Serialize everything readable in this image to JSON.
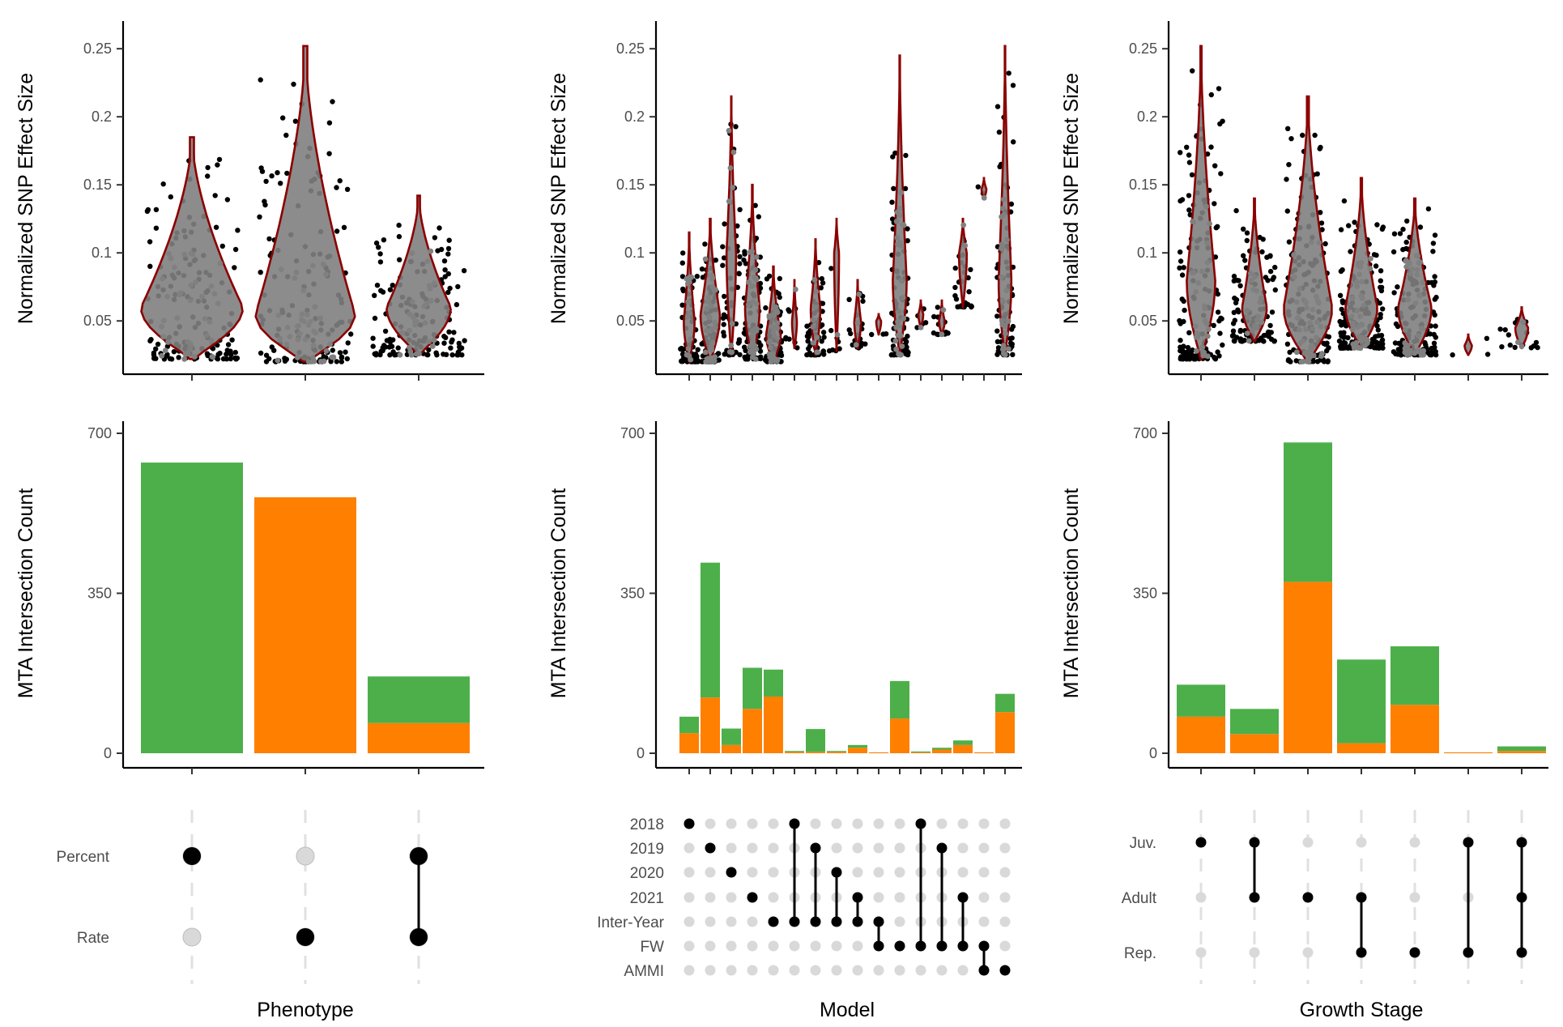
{
  "colors": {
    "green": "#4daf4a",
    "orange": "#ff7f00",
    "violin_outline": "#8b0000",
    "violin_fill": "#808080",
    "point": "#000000",
    "dot_inactive": "#d9d9d9",
    "dot_active": "#000000"
  },
  "chart_data": [
    {
      "type": "violin",
      "panel": "phenotype-effect",
      "ylabel": "Normalized SNP Effect Size",
      "yticks": [
        0.05,
        0.1,
        0.15,
        0.2,
        0.25
      ],
      "ylim": [
        0.018,
        0.262
      ],
      "groups": [
        {
          "min": 0.022,
          "max": 0.185,
          "median": 0.06,
          "n": 600
        },
        {
          "min": 0.02,
          "max": 0.252,
          "median": 0.055,
          "n": 560
        },
        {
          "min": 0.025,
          "max": 0.142,
          "median": 0.06,
          "n": 160
        }
      ]
    },
    {
      "type": "violin",
      "panel": "model-effect",
      "ylabel": "Normalized SNP Effect Size",
      "yticks": [
        0.05,
        0.1,
        0.15,
        0.2,
        0.25
      ],
      "ylim": [
        0.018,
        0.262
      ],
      "groups": [
        {
          "min": 0.02,
          "max": 0.115,
          "median": 0.05,
          "n": 80
        },
        {
          "min": 0.02,
          "max": 0.125,
          "median": 0.055,
          "n": 420
        },
        {
          "min": 0.025,
          "max": 0.215,
          "median": 0.1,
          "n": 55
        },
        {
          "min": 0.022,
          "max": 0.15,
          "median": 0.06,
          "n": 185
        },
        {
          "min": 0.02,
          "max": 0.09,
          "median": 0.04,
          "n": 185
        },
        {
          "min": 0.03,
          "max": 0.08,
          "median": 0.05,
          "n": 8
        },
        {
          "min": 0.025,
          "max": 0.11,
          "median": 0.06,
          "n": 55
        },
        {
          "min": 0.028,
          "max": 0.125,
          "median": 0.1,
          "n": 8
        },
        {
          "min": 0.03,
          "max": 0.08,
          "median": 0.05,
          "n": 20
        },
        {
          "min": 0.04,
          "max": 0.055,
          "median": 0.05,
          "n": 3
        },
        {
          "min": 0.025,
          "max": 0.245,
          "median": 0.08,
          "n": 160
        },
        {
          "min": 0.045,
          "max": 0.065,
          "median": 0.055,
          "n": 5
        },
        {
          "min": 0.04,
          "max": 0.065,
          "median": 0.05,
          "n": 12
        },
        {
          "min": 0.06,
          "max": 0.125,
          "median": 0.1,
          "n": 30
        },
        {
          "min": 0.14,
          "max": 0.155,
          "median": 0.147,
          "n": 3
        },
        {
          "min": 0.025,
          "max": 0.252,
          "median": 0.08,
          "n": 130
        }
      ]
    },
    {
      "type": "violin",
      "panel": "stage-effect",
      "ylabel": "Normalized SNP Effect Size",
      "yticks": [
        0.05,
        0.1,
        0.15,
        0.2,
        0.25
      ],
      "ylim": [
        0.018,
        0.262
      ],
      "groups": [
        {
          "min": 0.022,
          "max": 0.252,
          "median": 0.08,
          "n": 150
        },
        {
          "min": 0.035,
          "max": 0.14,
          "median": 0.06,
          "n": 100
        },
        {
          "min": 0.02,
          "max": 0.215,
          "median": 0.06,
          "n": 690
        },
        {
          "min": 0.03,
          "max": 0.155,
          "median": 0.06,
          "n": 210
        },
        {
          "min": 0.025,
          "max": 0.14,
          "median": 0.06,
          "n": 240
        },
        {
          "min": 0.025,
          "max": 0.04,
          "median": 0.032,
          "n": 3
        },
        {
          "min": 0.03,
          "max": 0.06,
          "median": 0.045,
          "n": 15
        }
      ]
    },
    {
      "type": "bar",
      "panel": "phenotype-count",
      "stacked": true,
      "ylabel": "MTA Intersection Count",
      "yticks": [
        0,
        350,
        700
      ],
      "ylim": [
        0,
        700
      ],
      "series": [
        {
          "color": "orange",
          "values": [
            0,
            560,
            66
          ]
        },
        {
          "color": "green",
          "values": [
            636,
            0,
            102
          ]
        }
      ]
    },
    {
      "type": "bar",
      "panel": "model-count",
      "stacked": true,
      "ylabel": "MTA Intersection Count",
      "yticks": [
        0,
        350,
        700
      ],
      "ylim": [
        0,
        700
      ],
      "series": [
        {
          "color": "orange",
          "values": [
            44,
            122,
            18,
            97,
            124,
            3,
            3,
            3,
            12,
            2,
            76,
            2,
            8,
            18,
            2,
            90
          ]
        },
        {
          "color": "green",
          "values": [
            36,
            295,
            36,
            90,
            59,
            2,
            50,
            2,
            6,
            0,
            82,
            2,
            4,
            10,
            0,
            40
          ]
        }
      ]
    },
    {
      "type": "bar",
      "panel": "stage-count",
      "stacked": true,
      "ylabel": "MTA Intersection Count",
      "yticks": [
        0,
        350,
        700
      ],
      "ylim": [
        0,
        700
      ],
      "series": [
        {
          "color": "orange",
          "values": [
            80,
            42,
            375,
            22,
            106,
            2,
            5
          ]
        },
        {
          "color": "green",
          "values": [
            70,
            55,
            305,
            183,
            128,
            0,
            10
          ]
        }
      ]
    },
    {
      "type": "matrix",
      "panel": "phenotype-sets",
      "xlabel": "Phenotype",
      "sets": [
        "Percent",
        "Rate"
      ],
      "columns": [
        [
          0
        ],
        [
          1
        ],
        [
          0,
          1
        ]
      ]
    },
    {
      "type": "matrix",
      "panel": "model-sets",
      "xlabel": "Model",
      "sets": [
        "2018",
        "2019",
        "2020",
        "2021",
        "Inter-Year",
        "FW",
        "AMMI"
      ],
      "columns": [
        [
          0
        ],
        [
          1
        ],
        [
          2
        ],
        [
          3
        ],
        [
          4
        ],
        [
          0,
          4
        ],
        [
          1,
          4
        ],
        [
          2,
          4
        ],
        [
          3,
          4
        ],
        [
          4,
          5
        ],
        [
          5
        ],
        [
          0,
          5
        ],
        [
          1,
          5
        ],
        [
          3,
          5
        ],
        [
          5,
          6
        ],
        [
          6
        ]
      ]
    },
    {
      "type": "matrix",
      "panel": "stage-sets",
      "xlabel": "Growth Stage",
      "sets": [
        "Juv.",
        "Adult",
        "Rep."
      ],
      "columns": [
        [
          0
        ],
        [
          0,
          1
        ],
        [
          1
        ],
        [
          1,
          2
        ],
        [
          2
        ],
        [
          0,
          2
        ],
        [
          0,
          1,
          2
        ]
      ]
    }
  ]
}
